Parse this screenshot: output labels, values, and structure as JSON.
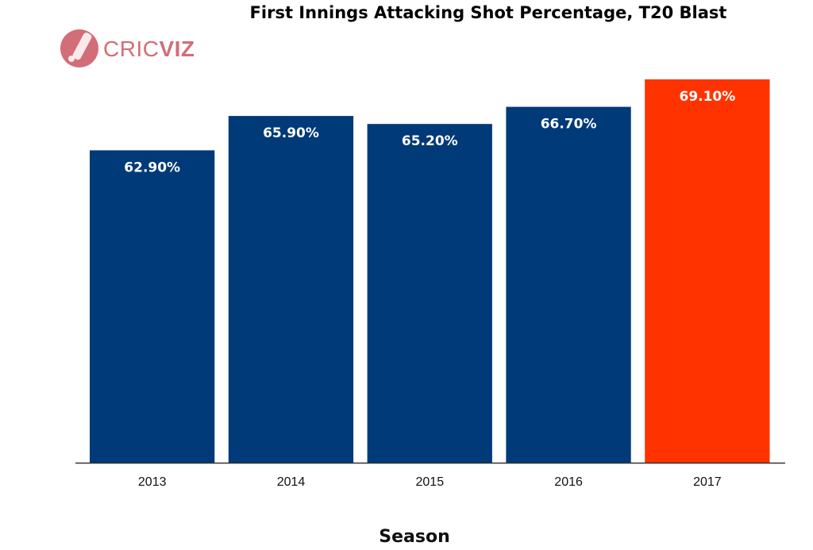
{
  "brand": {
    "name_part1": "CRIC",
    "name_part2": "VIZ",
    "icon": "cricket-bat-ball-icon",
    "color": "#d36d77"
  },
  "chart_data": {
    "type": "bar",
    "title": "First Innings Attacking Shot Percentage, T20 Blast",
    "xlabel": "Season",
    "ylabel": "",
    "categories": [
      "2013",
      "2014",
      "2015",
      "2016",
      "2017"
    ],
    "values": [
      62.9,
      65.9,
      65.2,
      66.7,
      69.1
    ],
    "data_labels": [
      "62.90%",
      "65.90%",
      "65.20%",
      "66.70%",
      "69.10%"
    ],
    "colors": [
      "#003a78",
      "#003a78",
      "#003a78",
      "#003a78",
      "#ff3300"
    ],
    "ylim": [
      35.6,
      70.4
    ],
    "grid": false,
    "y_axis_visible": false
  }
}
